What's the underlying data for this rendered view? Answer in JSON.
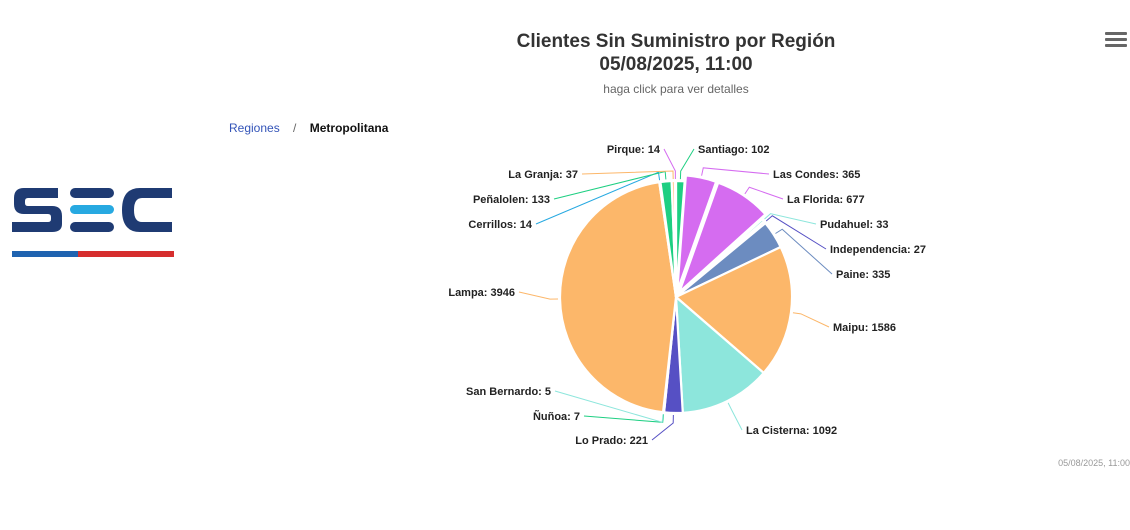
{
  "header": {
    "title_line1": "Clientes Sin Suministro por Región",
    "title_line2": "05/08/2025, 11:00",
    "subtitle": "haga click para ver detalles",
    "menu_icon": "hamburger-menu-icon"
  },
  "breadcrumb": {
    "root": "Regiones",
    "separator": "/",
    "current": "Metropolitana"
  },
  "logo": {
    "text": "SEC",
    "colors": {
      "dark": "#1f3b73",
      "light": "#27a9e1",
      "red": "#d62e2e"
    }
  },
  "credits": "05/08/2025, 11:00",
  "chart_data": {
    "type": "pie",
    "title": "Clientes Sin Suministro por Región",
    "subtitle": "haga click para ver detalles",
    "slices": [
      {
        "name": "Santiago",
        "value": 102,
        "color": "#1ecf82"
      },
      {
        "name": "Las Condes",
        "value": 365,
        "color": "#d56cf0"
      },
      {
        "name": "La Florida",
        "value": 677,
        "color": "#d56cf0"
      },
      {
        "name": "Pudahuel",
        "value": 33,
        "color": "#8de6dc"
      },
      {
        "name": "Independencia",
        "value": 27,
        "color": "#5650c4"
      },
      {
        "name": "Paine",
        "value": 335,
        "color": "#6c8cc0"
      },
      {
        "name": "Maipu",
        "value": 1586,
        "color": "#fcb76a"
      },
      {
        "name": "La Cisterna",
        "value": 1092,
        "color": "#8de6dc"
      },
      {
        "name": "Lo Prado",
        "value": 221,
        "color": "#5650c4"
      },
      {
        "name": "Ñuñoa",
        "value": 7,
        "color": "#1ecf82"
      },
      {
        "name": "San Bernardo",
        "value": 5,
        "color": "#8de6dc"
      },
      {
        "name": "Lampa",
        "value": 3946,
        "color": "#fcb76a"
      },
      {
        "name": "Cerrillos",
        "value": 14,
        "color": "#27a9e1"
      },
      {
        "name": "Peñalolen",
        "value": 133,
        "color": "#1ecf82"
      },
      {
        "name": "La Granja",
        "value": 37,
        "color": "#fcb76a"
      },
      {
        "name": "Pirque",
        "value": 14,
        "color": "#d56cf0"
      }
    ]
  }
}
